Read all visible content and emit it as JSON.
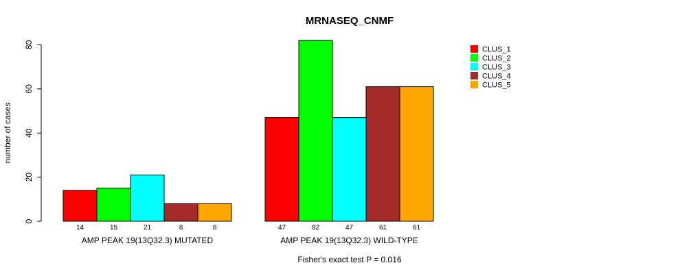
{
  "chart_data": {
    "type": "bar",
    "title": "MRNASEQ_CNMF",
    "ylabel": "number of cases",
    "xlabel": "",
    "ylim": [
      0,
      82
    ],
    "yticks": [
      0,
      20,
      40,
      60,
      80
    ],
    "grid": false,
    "legend_position": "top-right",
    "categories": [
      "AMP PEAK 19(13Q32.3) MUTATED",
      "AMP PEAK 19(13Q32.3) WILD-TYPE"
    ],
    "series": [
      {
        "name": "CLUS_1",
        "color": "#ff0000",
        "values": [
          14,
          47
        ]
      },
      {
        "name": "CLUS_2",
        "color": "#00ff00",
        "values": [
          15,
          82
        ]
      },
      {
        "name": "CLUS_3",
        "color": "#00ffff",
        "values": [
          21,
          47
        ]
      },
      {
        "name": "CLUS_4",
        "color": "#a52a2a",
        "values": [
          8,
          61
        ]
      },
      {
        "name": "CLUS_5",
        "color": "#ffa500",
        "values": [
          8,
          61
        ]
      }
    ],
    "footnote": "Fisher's exact test P = 0.016"
  }
}
